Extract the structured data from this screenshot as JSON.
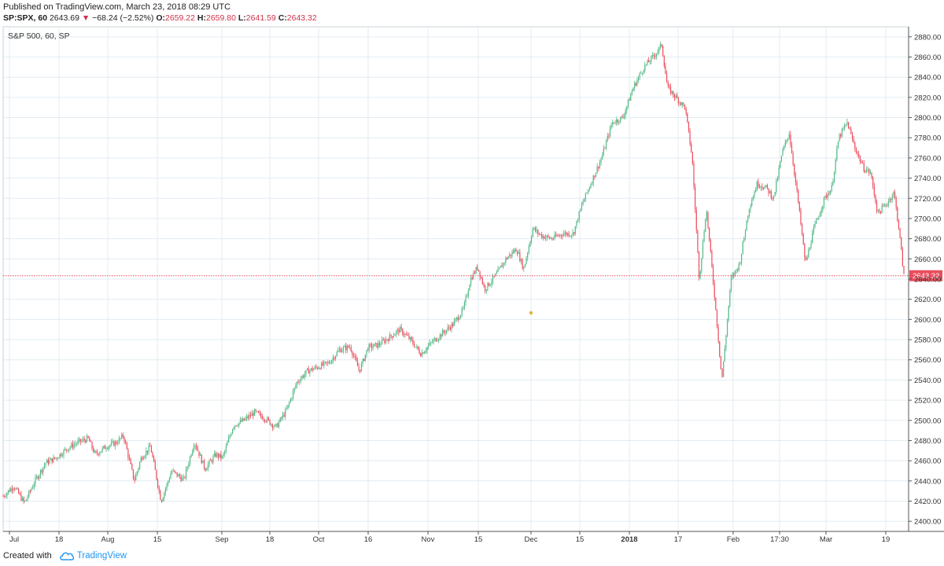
{
  "header": {
    "published": "Published on TradingView.com, March 23, 2018 08:29 UTC",
    "symbol": "SP:SPX, 60",
    "last": "2643.69",
    "arrow": "▼",
    "change": "−68.24 (−2.52%)",
    "o_label": "O:",
    "o_value": "2659.22",
    "h_label": "H:",
    "h_value": "2659.80",
    "l_label": "L:",
    "l_value": "2641.59",
    "c_label": "C:",
    "c_value": "2643.32"
  },
  "chart_data": {
    "type": "candlestick",
    "title": "S&P 500, 60, SP",
    "ylim": [
      2390,
      2890
    ],
    "y_ticks": [
      2400,
      2420,
      2440,
      2460,
      2480,
      2500,
      2520,
      2540,
      2560,
      2580,
      2600,
      2620,
      2640,
      2660,
      2680,
      2700,
      2720,
      2740,
      2760,
      2780,
      2800,
      2820,
      2840,
      2860,
      2880
    ],
    "x_ticks": [
      {
        "label": "Jul",
        "bold": false
      },
      {
        "label": "18",
        "bold": false
      },
      {
        "label": "Aug",
        "bold": false
      },
      {
        "label": "15",
        "bold": false
      },
      {
        "label": "Sep",
        "bold": false
      },
      {
        "label": "18",
        "bold": false
      },
      {
        "label": "Oct",
        "bold": false
      },
      {
        "label": "16",
        "bold": false
      },
      {
        "label": "Nov",
        "bold": false
      },
      {
        "label": "15",
        "bold": false
      },
      {
        "label": "Dec",
        "bold": false
      },
      {
        "label": "15",
        "bold": false
      },
      {
        "label": "2018",
        "bold": true
      },
      {
        "label": "17",
        "bold": false
      },
      {
        "label": "Feb",
        "bold": false
      },
      {
        "label": "17:30",
        "bold": false
      },
      {
        "label": "Mar",
        "bold": false
      },
      {
        "label": "19",
        "bold": false
      }
    ],
    "last_price": 2643.32,
    "last_price_label": "2643.32",
    "grid": true,
    "colors": {
      "up": "#53b987",
      "down": "#eb4d5c",
      "grid": "#e1ecf2",
      "price_line": "#eb4d5c",
      "label_bg": "#eb4d5c"
    },
    "path": [
      [
        0.0,
        2425
      ],
      [
        1.5,
        2435
      ],
      [
        3.0,
        2418
      ],
      [
        4.5,
        2440
      ],
      [
        6.0,
        2458
      ],
      [
        7.5,
        2463
      ],
      [
        9.0,
        2472
      ],
      [
        10.5,
        2478
      ],
      [
        12.0,
        2482
      ],
      [
        13.0,
        2466
      ],
      [
        14.5,
        2474
      ],
      [
        16.0,
        2478
      ],
      [
        17.0,
        2485
      ],
      [
        18.5,
        2440
      ],
      [
        19.5,
        2463
      ],
      [
        20.8,
        2474
      ],
      [
        22.3,
        2420
      ],
      [
        23.8,
        2450
      ],
      [
        25.5,
        2441
      ],
      [
        27.0,
        2479
      ],
      [
        28.5,
        2452
      ],
      [
        30.0,
        2466
      ],
      [
        31.0,
        2463
      ],
      [
        32.5,
        2495
      ],
      [
        34.0,
        2500
      ],
      [
        35.5,
        2508
      ],
      [
        37.0,
        2502
      ],
      [
        38.5,
        2493
      ],
      [
        40.0,
        2510
      ],
      [
        41.5,
        2538
      ],
      [
        43.0,
        2549
      ],
      [
        44.5,
        2553
      ],
      [
        46.0,
        2557
      ],
      [
        47.5,
        2570
      ],
      [
        49.0,
        2573
      ],
      [
        50.3,
        2549
      ],
      [
        51.5,
        2572
      ],
      [
        53.0,
        2575
      ],
      [
        54.5,
        2582
      ],
      [
        56.0,
        2590
      ],
      [
        57.5,
        2580
      ],
      [
        59.0,
        2566
      ],
      [
        60.5,
        2577
      ],
      [
        62.0,
        2586
      ],
      [
        63.5,
        2595
      ],
      [
        65.0,
        2610
      ],
      [
        66.0,
        2640
      ],
      [
        67.0,
        2652
      ],
      [
        68.0,
        2630
      ],
      [
        69.5,
        2643
      ],
      [
        71.0,
        2660
      ],
      [
        72.5,
        2670
      ],
      [
        73.5,
        2650
      ],
      [
        74.8,
        2690
      ],
      [
        76.0,
        2683
      ],
      [
        77.5,
        2680
      ],
      [
        79.0,
        2685
      ],
      [
        80.5,
        2685
      ],
      [
        81.8,
        2715
      ],
      [
        83.0,
        2735
      ],
      [
        84.5,
        2760
      ],
      [
        86.0,
        2795
      ],
      [
        87.5,
        2800
      ],
      [
        89.0,
        2830
      ],
      [
        90.5,
        2850
      ],
      [
        92.0,
        2862
      ],
      [
        93.0,
        2872
      ],
      [
        93.8,
        2830
      ],
      [
        95.0,
        2820
      ],
      [
        96.3,
        2810
      ],
      [
        97.3,
        2760
      ],
      [
        98.3,
        2640
      ],
      [
        99.3,
        2710
      ],
      [
        100.5,
        2620
      ],
      [
        101.5,
        2540
      ],
      [
        102.8,
        2640
      ],
      [
        104.0,
        2655
      ],
      [
        105.3,
        2710
      ],
      [
        106.5,
        2735
      ],
      [
        107.8,
        2730
      ],
      [
        108.8,
        2720
      ],
      [
        110.0,
        2765
      ],
      [
        111.0,
        2785
      ],
      [
        112.3,
        2715
      ],
      [
        113.3,
        2655
      ],
      [
        114.5,
        2690
      ],
      [
        116.0,
        2720
      ],
      [
        117.0,
        2730
      ],
      [
        118.0,
        2780
      ],
      [
        119.2,
        2795
      ],
      [
        120.3,
        2770
      ],
      [
        121.5,
        2750
      ],
      [
        122.5,
        2745
      ],
      [
        123.5,
        2705
      ],
      [
        124.8,
        2715
      ],
      [
        125.8,
        2726
      ],
      [
        126.5,
        2690
      ],
      [
        127.2,
        2643
      ]
    ]
  },
  "annotations": {
    "event_marker": "dividend-dot"
  },
  "footer": {
    "created_with": "Created with",
    "brand": "TradingView"
  }
}
